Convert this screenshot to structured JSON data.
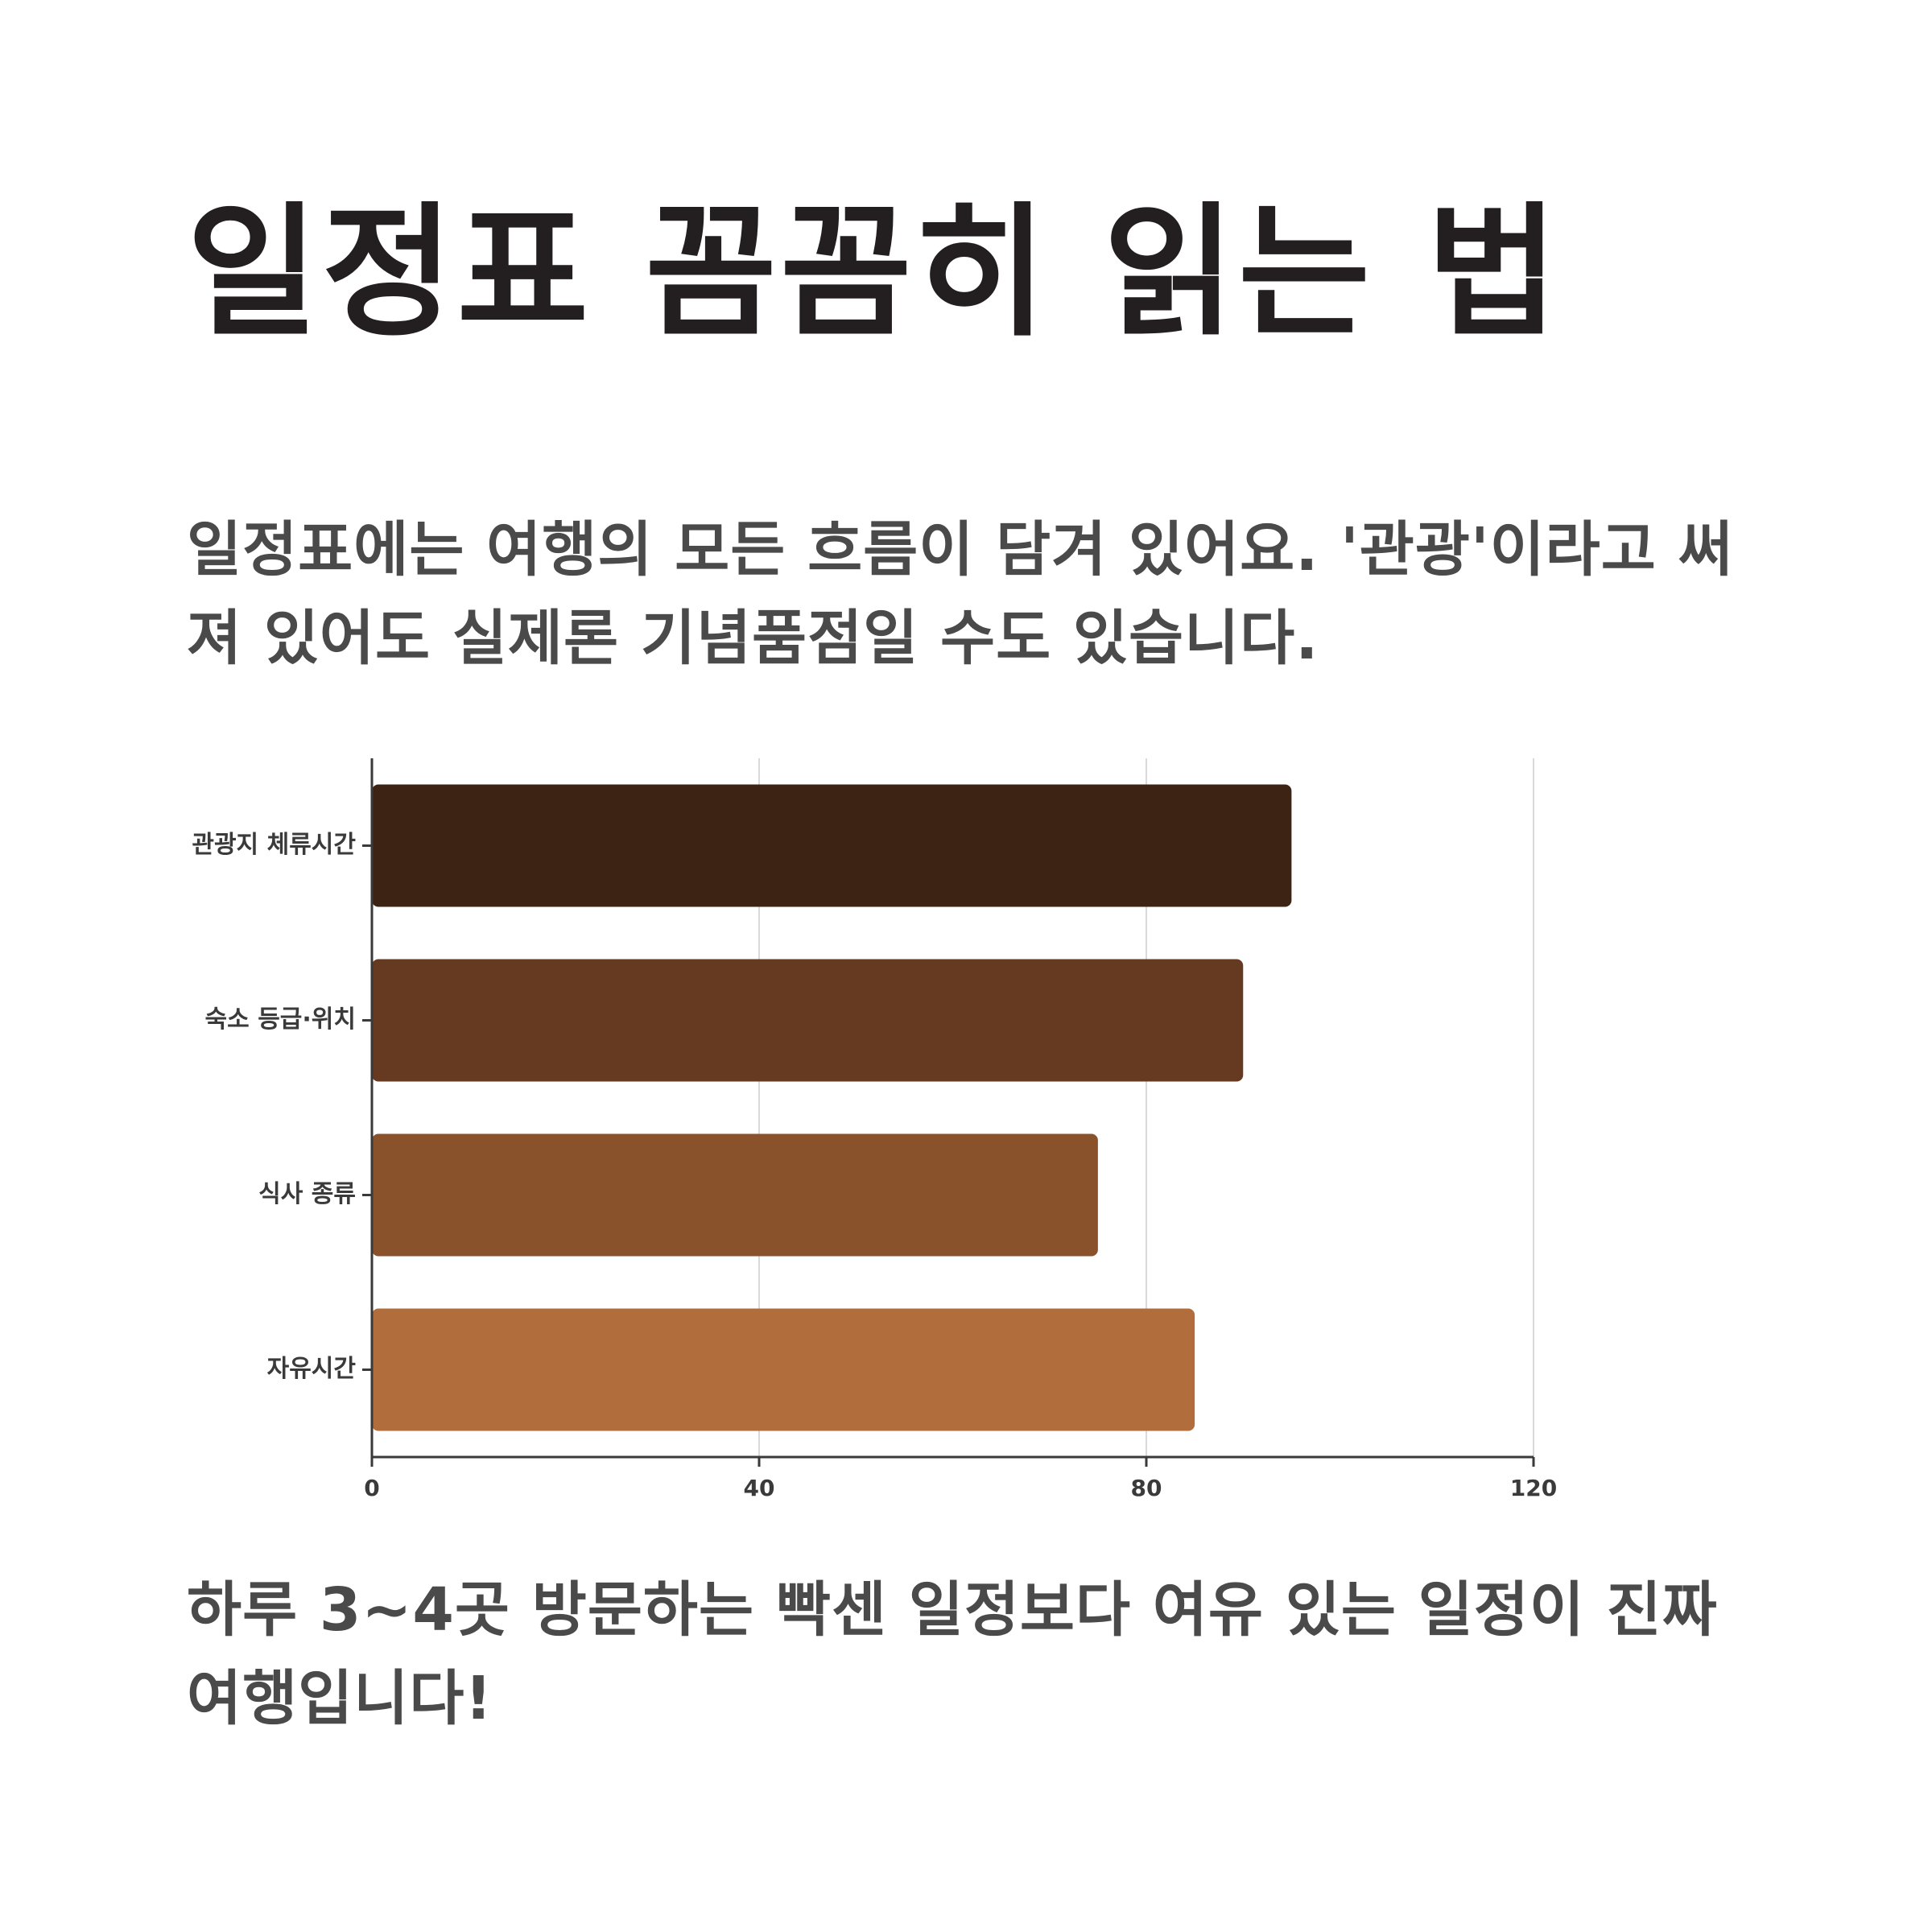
{
  "header": {
    "title": "일정표 꼼꼼히 읽는 법"
  },
  "intro": {
    "text": "일정표에는 여행의 모든 흐름이 담겨 있어요. '관광'이라고 써져 있어도 실제론 기념품점일 수도 있습니다."
  },
  "outro": {
    "text": "하루 3~4곳 방문하는 빡센 일정보다 여유 있는 일정이 진짜 여행입니다!"
  },
  "chart_data": {
    "type": "bar",
    "orientation": "horizontal",
    "categories": [
      "관광지 체류시간",
      "숙소 등급·위치",
      "식사 종류",
      "자유시간"
    ],
    "values": [
      95,
      90,
      75,
      85
    ],
    "xlim": [
      0,
      120
    ],
    "xticks": [
      0,
      40,
      80,
      120
    ],
    "grid": "vertical",
    "colors": [
      "#3d2314",
      "#653a20",
      "#8a522b",
      "#b16d3b"
    ],
    "title": "",
    "xlabel": "",
    "ylabel": ""
  }
}
